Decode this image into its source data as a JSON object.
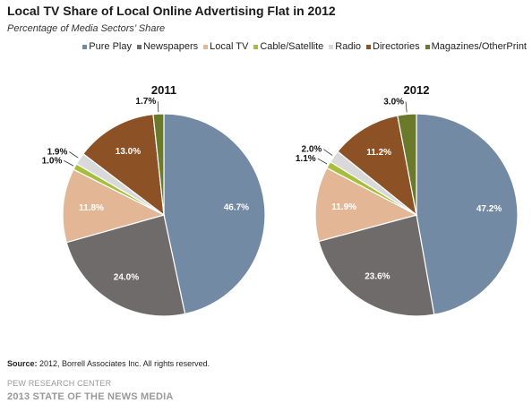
{
  "title": "Local TV Share of Local Online Advertising Flat in 2012",
  "subtitle": "Percentage of Media Sectors’ Share",
  "legend": [
    {
      "name": "Pure Play",
      "color": "#728aa4"
    },
    {
      "name": "Newspapers",
      "color": "#6f6b6a"
    },
    {
      "name": "Local TV",
      "color": "#e3b795"
    },
    {
      "name": "Cable/Satellite",
      "color": "#a6be3a"
    },
    {
      "name": "Radio",
      "color": "#d9d9d9"
    },
    {
      "name": "Directories",
      "color": "#8c5226"
    },
    {
      "name": "Magazines/OtherPrint",
      "color": "#6b7a2a"
    }
  ],
  "chart_data": [
    {
      "type": "pie",
      "title": "2011",
      "categories": [
        "Pure Play",
        "Newspapers",
        "Local TV",
        "Cable/Satellite",
        "Radio",
        "Directories",
        "Magazines/OtherPrint"
      ],
      "values": [
        46.7,
        24.0,
        11.8,
        1.0,
        1.9,
        13.0,
        1.7
      ],
      "labels": [
        "46.7%",
        "24.0%",
        "11.8%",
        "1.0%",
        "1.9%",
        "13.0%",
        "1.7%"
      ]
    },
    {
      "type": "pie",
      "title": "2012",
      "categories": [
        "Pure Play",
        "Newspapers",
        "Local TV",
        "Cable/Satellite",
        "Radio",
        "Directories",
        "Magazines/OtherPrint"
      ],
      "values": [
        47.2,
        23.6,
        11.9,
        1.1,
        2.0,
        11.2,
        3.0
      ],
      "labels": [
        "47.2%",
        "23.6%",
        "11.9%",
        "1.1%",
        "2.0%",
        "11.2%",
        "3.0%"
      ]
    }
  ],
  "footer": {
    "source_label": "Source:",
    "source_text": " 2012, Borrell Associates Inc. All rights reserved.",
    "org": "PEW RESEARCH CENTER",
    "report": "2013 STATE OF THE NEWS MEDIA"
  }
}
